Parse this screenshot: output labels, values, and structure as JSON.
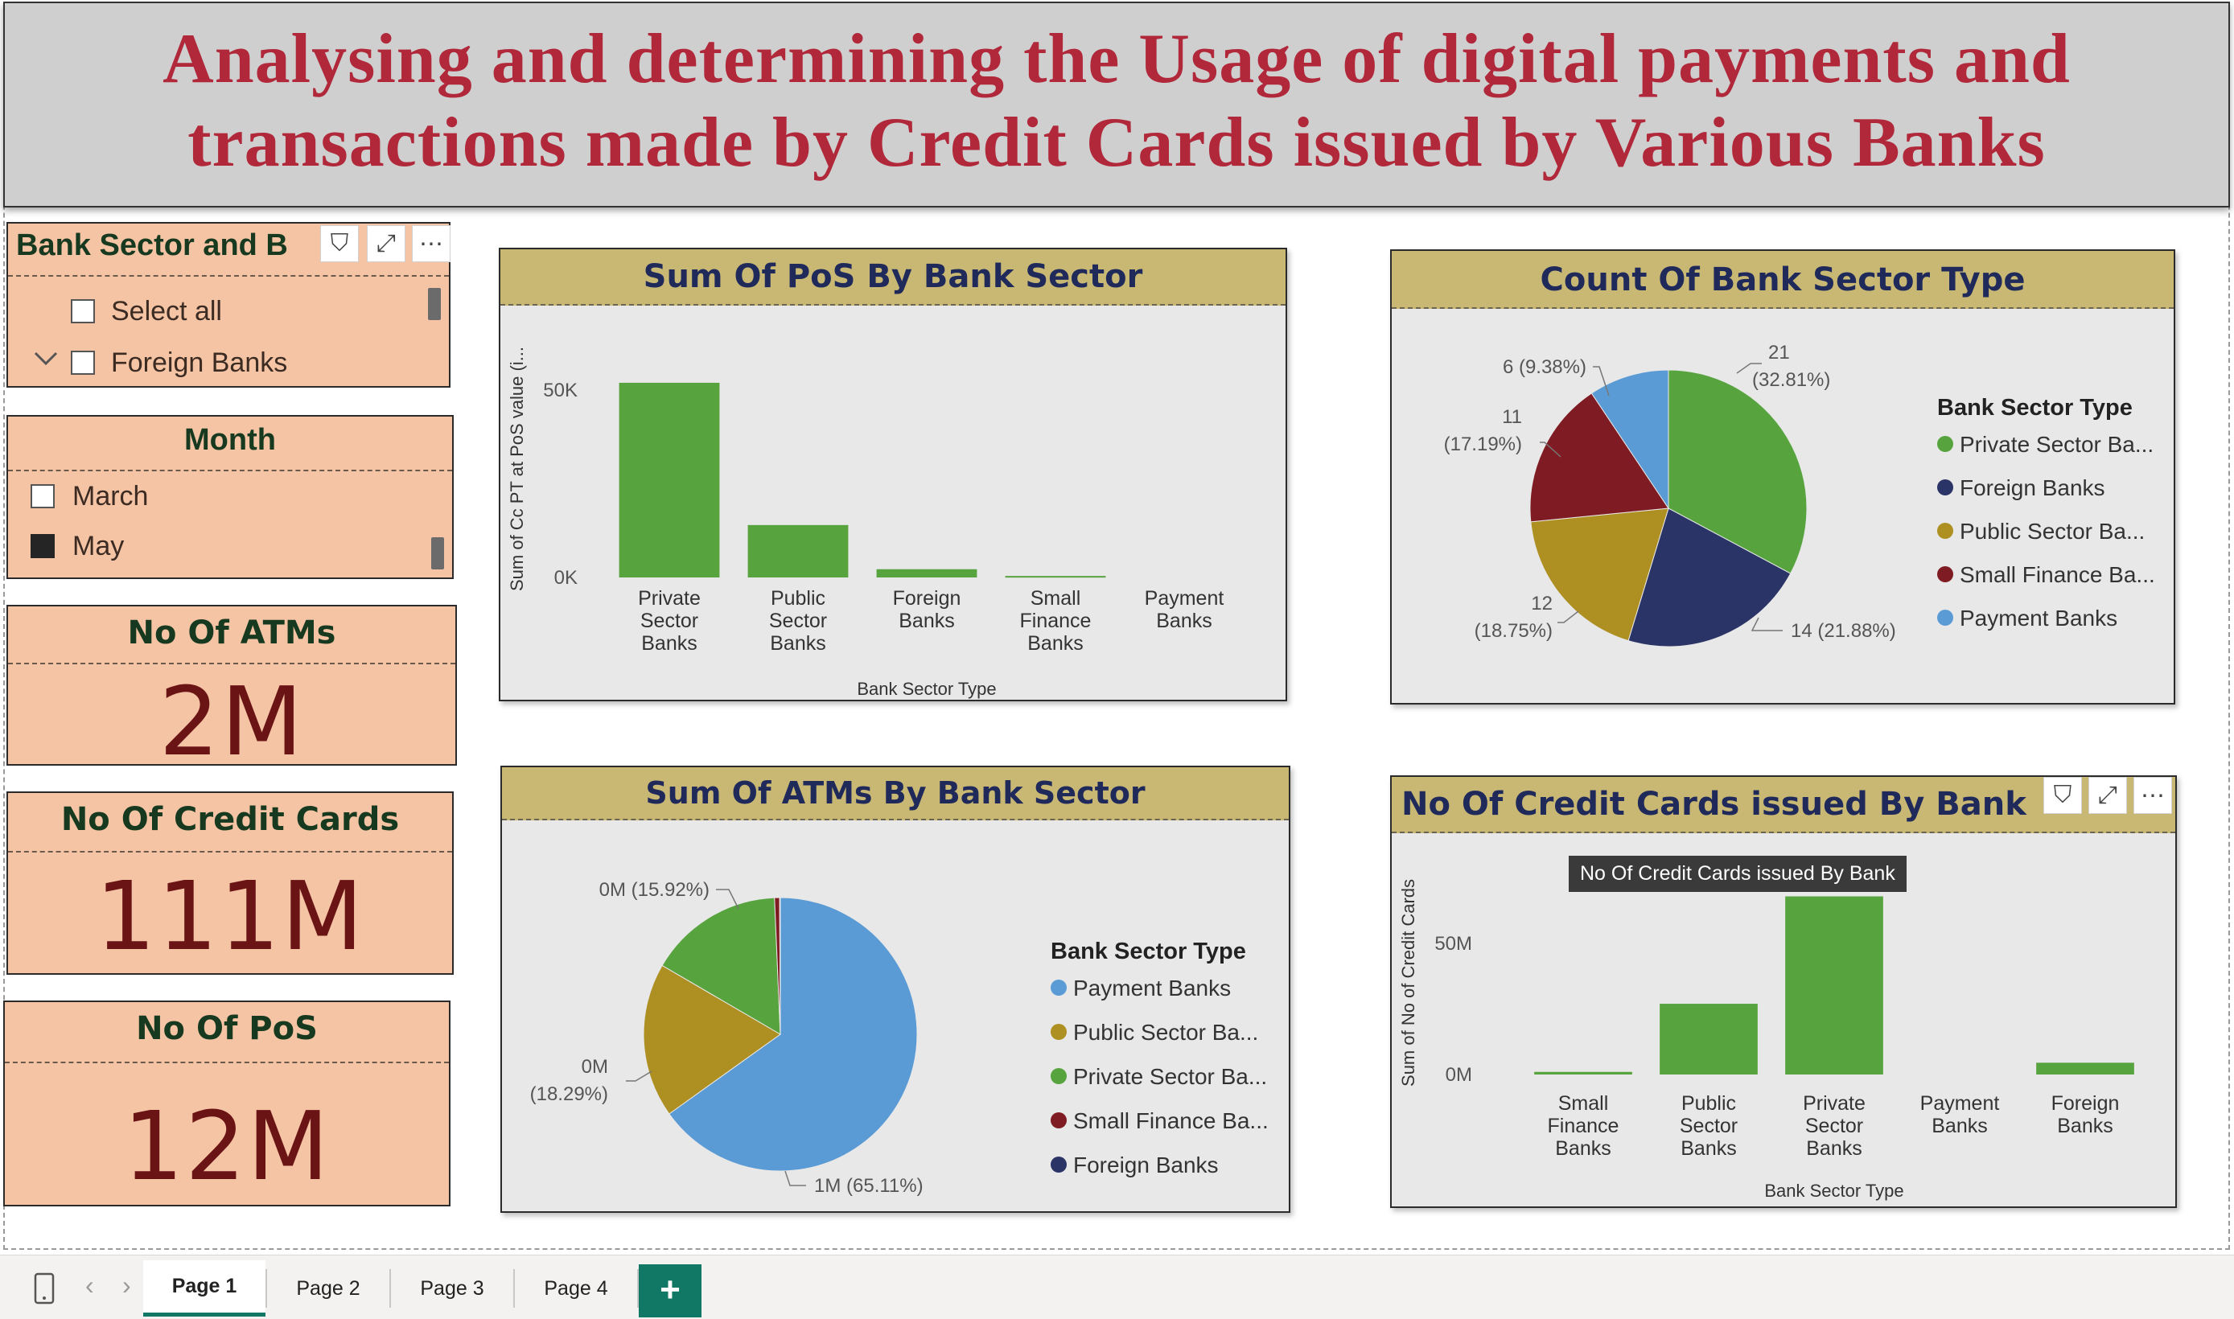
{
  "title": {
    "line1": "Analysing and determining the Usage of digital payments and",
    "line2": "transactions made by Credit Cards issued by Various Banks"
  },
  "slicer_bank": {
    "header": "Bank Sector and B",
    "items": [
      "Select all",
      "Foreign Banks"
    ],
    "icons": [
      "filter-icon",
      "focus-mode-icon",
      "more-options-icon"
    ],
    "icon_glyphs": {
      "filter": "⛉",
      "focus": "⤢",
      "more": "⋯"
    }
  },
  "slicer_month": {
    "header": "Month",
    "items": [
      {
        "label": "March",
        "checked": false
      },
      {
        "label": "May",
        "checked": true
      }
    ]
  },
  "cards": [
    {
      "label": "No Of ATMs",
      "value": "2M"
    },
    {
      "label": "No Of Credit Cards",
      "value": "111M"
    },
    {
      "label": "No Of PoS",
      "value": "12M"
    }
  ],
  "chart_data": [
    {
      "type": "bar",
      "title": "Sum Of PoS By Bank Sector",
      "xlabel": "Bank Sector Type",
      "ylabel": "Sum of Cc PT at PoS value (i...",
      "categories": [
        "Private Sector Banks",
        "Public Sector Banks",
        "Foreign Banks",
        "Small Finance Banks",
        "Payment Banks"
      ],
      "values": [
        52000,
        14000,
        2200,
        400,
        0
      ],
      "yticks": [
        "50K",
        "0K"
      ],
      "ytick_values": [
        50000,
        0
      ],
      "ylim": [
        0,
        58000
      ],
      "color": "#57a33e"
    },
    {
      "type": "pie",
      "title": "Count Of Bank Sector Type",
      "legend_title": "Bank Sector Type",
      "legend_placement": "right",
      "legend": [
        "Private Sector Ba...",
        "Foreign Banks",
        "Public Sector Ba...",
        "Small Finance Ba...",
        "Payment Banks"
      ],
      "slices": [
        {
          "name": "Private Sector Banks",
          "value": 21,
          "color": "#57a33e"
        },
        {
          "name": "Foreign Banks",
          "value": 14,
          "color": "#2a3466"
        },
        {
          "name": "Public Sector Banks",
          "value": 12,
          "color": "#ae8f22"
        },
        {
          "name": "Small Finance Banks",
          "value": 11,
          "color": "#7f1b22"
        },
        {
          "name": "Payment Banks",
          "value": 6,
          "color": "#5b9bd5"
        }
      ],
      "labels": [
        "21",
        "(32.81%)",
        "14 (21.88%)",
        "12",
        "(18.75%)",
        "11",
        "(17.19%)",
        "6 (9.38%)"
      ]
    },
    {
      "type": "pie",
      "title": "Sum Of ATMs By Bank Sector",
      "legend_title": "Bank Sector Type",
      "legend_placement": "right",
      "legend": [
        "Payment Banks",
        "Public Sector Ba...",
        "Private Sector Ba...",
        "Small Finance Ba...",
        "Foreign Banks"
      ],
      "slices": [
        {
          "name": "Payment Banks",
          "value": 65.11,
          "color": "#5b9bd5"
        },
        {
          "name": "Public Sector Banks",
          "value": 18.29,
          "color": "#ae8f22"
        },
        {
          "name": "Private Sector Banks",
          "value": 15.92,
          "color": "#57a33e"
        },
        {
          "name": "Small Finance Banks",
          "value": 0.6,
          "color": "#7f1b22"
        },
        {
          "name": "Foreign Banks",
          "value": 0.08,
          "color": "#2a3466"
        }
      ],
      "labels": [
        "1M (65.11%)",
        "0M",
        "(18.29%)",
        "0M (15.92%)"
      ]
    },
    {
      "type": "bar",
      "title": "No Of Credit Cards issued By Bank",
      "tooltip": "No Of Credit Cards issued By Bank",
      "xlabel": "Bank Sector Type",
      "ylabel": "Sum of No of Credit Cards",
      "categories": [
        "Small Finance Banks",
        "Public Sector Banks",
        "Private Sector Banks",
        "Payment Banks",
        "Foreign Banks"
      ],
      "values": [
        1000000,
        27000000,
        68000000,
        0,
        4500000
      ],
      "yticks": [
        "50M",
        "0M"
      ],
      "ytick_values": [
        50000000,
        0
      ],
      "ylim": [
        0,
        70000000
      ],
      "color": "#57a33e"
    }
  ],
  "tabs": [
    "Page 1",
    "Page 2",
    "Page 3",
    "Page 4"
  ],
  "add_tab_label": "+",
  "nav": {
    "prev": "‹",
    "next": "›"
  }
}
